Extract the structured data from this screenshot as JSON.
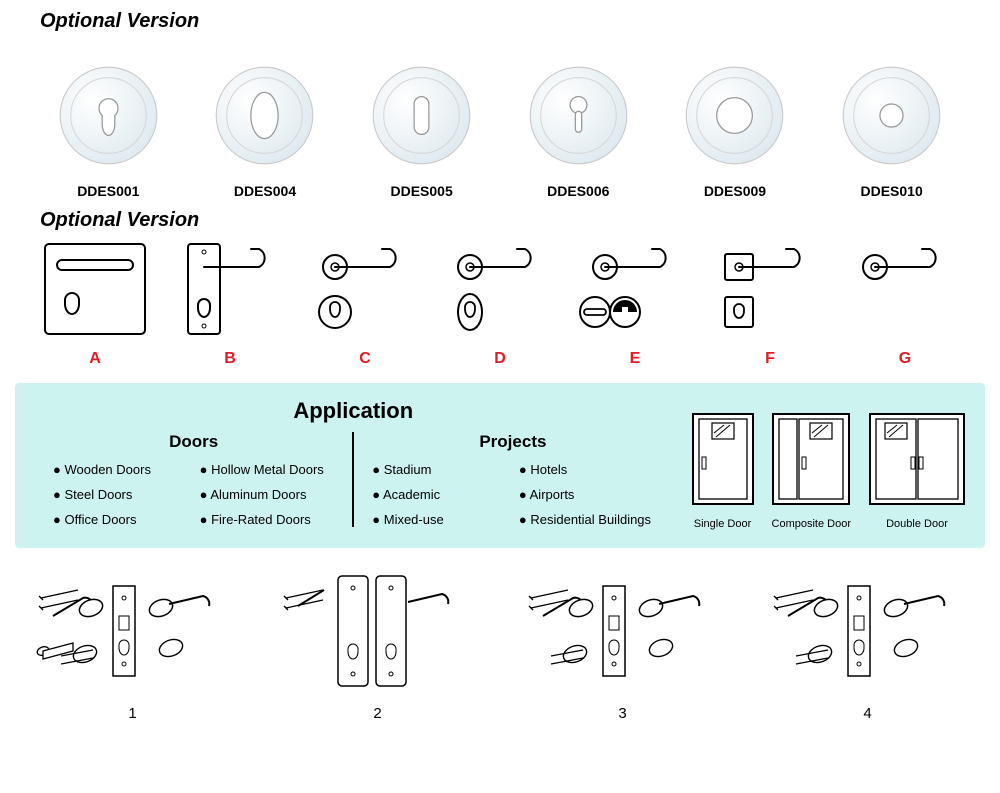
{
  "title1": "Optional Version",
  "title2": "Optional Version",
  "escutcheons": {
    "stroke": "#b0b0b0",
    "fill_light": "#f2f2f2",
    "fill_grad_a": "#dfeaf0",
    "fill_grad_b": "#ffffff",
    "items": [
      {
        "code": "DDES001",
        "hole": "euro"
      },
      {
        "code": "DDES004",
        "hole": "oval"
      },
      {
        "code": "DDES005",
        "hole": "slot"
      },
      {
        "code": "DDES006",
        "hole": "keyhole"
      },
      {
        "code": "DDES009",
        "hole": "ring"
      },
      {
        "code": "DDES010",
        "hole": "dot"
      }
    ]
  },
  "handles": {
    "stroke": "#000000",
    "letter_color": "#e71921",
    "items": [
      {
        "letter": "A"
      },
      {
        "letter": "B"
      },
      {
        "letter": "C"
      },
      {
        "letter": "D"
      },
      {
        "letter": "E"
      },
      {
        "letter": "F"
      },
      {
        "letter": "G"
      }
    ]
  },
  "application": {
    "box_bg": "#cdf3f1",
    "title": "Application",
    "doors_title": "Doors",
    "projects_title": "Projects",
    "doors": [
      "Wooden Doors",
      "Hollow Metal Doors",
      "Steel Doors",
      "Aluminum Doors",
      "Office Doors",
      "Fire-Rated Doors"
    ],
    "projects": [
      "Stadium",
      "Hotels",
      "Academic",
      "Airports",
      "Mixed-use",
      "Residential Buildings"
    ],
    "door_types": [
      {
        "label": "Single Door",
        "type": "single"
      },
      {
        "label": "Composite Door",
        "type": "composite"
      },
      {
        "label": "Double Door",
        "type": "double"
      }
    ]
  },
  "assemblies": [
    {
      "num": "1"
    },
    {
      "num": "2"
    },
    {
      "num": "3"
    },
    {
      "num": "4"
    }
  ]
}
